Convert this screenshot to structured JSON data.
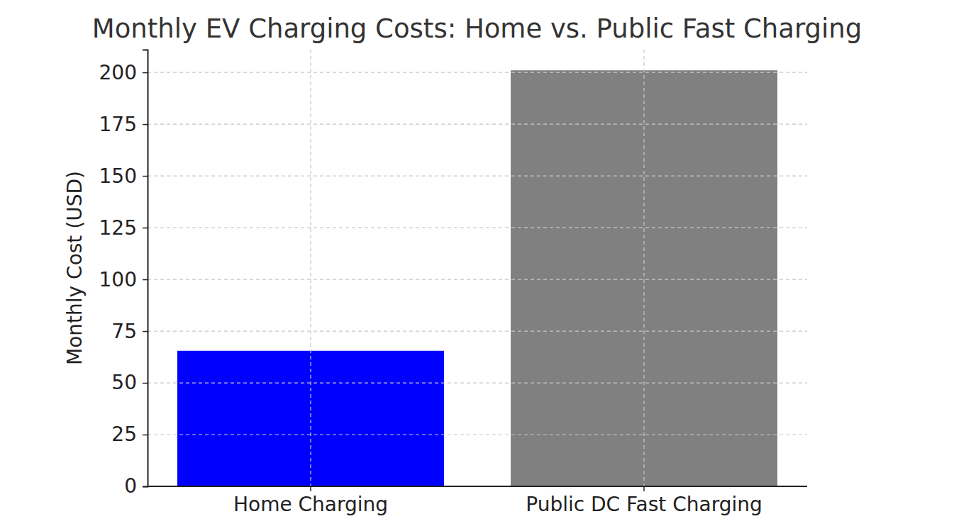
{
  "chart_data": {
    "type": "bar",
    "title": "Monthly EV Charging Costs: Home vs. Public Fast Charging",
    "ylabel": "Monthly Cost (USD)",
    "categories": [
      "Home Charging",
      "Public DC Fast Charging"
    ],
    "values": [
      65.5,
      201
    ],
    "colors": [
      "#0000ff",
      "#808080"
    ],
    "ylim": [
      0,
      211
    ],
    "yticks": [
      0,
      25,
      50,
      75,
      100,
      125,
      150,
      175,
      200
    ],
    "grid": true
  }
}
